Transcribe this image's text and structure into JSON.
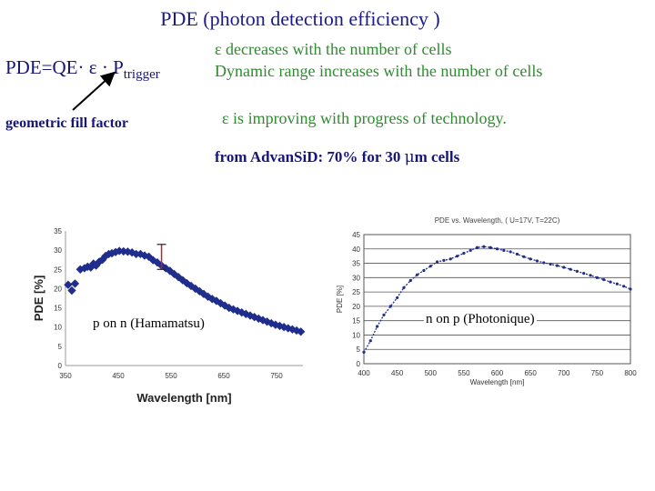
{
  "slide": {
    "title": "PDE (photon detection efficiency )",
    "formula_lhs": "PDE=QE· ε · P",
    "formula_sub": "trigger",
    "fill_factor_label": "geometric fill factor",
    "line1": "ε decreases with the number of cells",
    "line2": "Dynamic range increases with the number of cells",
    "line3": "ε is improving with progress of technology.",
    "advan_prefix": "from AdvanSiD: 70% for 30 ",
    "advan_mu": "μ",
    "advan_suffix": "m cells"
  },
  "colors": {
    "title": "#1a1a8c",
    "green_text": "#2e8b2e",
    "left_series": "#1f2d8c",
    "right_series": "#1f2d8c"
  },
  "chart_data": [
    {
      "type": "scatter",
      "title": "",
      "xlabel": "Wavelength [nm]",
      "ylabel": "PDE [%]",
      "xlim": [
        350,
        800
      ],
      "ylim": [
        0,
        35
      ],
      "x_ticks": [
        350,
        450,
        550,
        650,
        750
      ],
      "y_ticks": [
        0,
        5,
        10,
        15,
        20,
        25,
        30,
        35
      ],
      "annotation": "p on n (Hamamatsu)",
      "series": [
        {
          "x": [
            355,
            362,
            368,
            378,
            386,
            392,
            398,
            403,
            408,
            414,
            420,
            426,
            432,
            438,
            445,
            452,
            460,
            468,
            476,
            484,
            492,
            500,
            508,
            516,
            524,
            532,
            540,
            548,
            556,
            564,
            572,
            580,
            588,
            596,
            604,
            612,
            620,
            628,
            636,
            644,
            652,
            660,
            668,
            676,
            684,
            692,
            700,
            708,
            716,
            724,
            732,
            740,
            748,
            756,
            764,
            772,
            780,
            788,
            796
          ],
          "y": [
            21.0,
            19.5,
            21.3,
            25.0,
            25.3,
            25.7,
            25.5,
            26.5,
            26.0,
            27.0,
            27.5,
            28.5,
            29.0,
            29.2,
            29.5,
            29.8,
            29.7,
            29.6,
            29.4,
            29.0,
            29.0,
            28.6,
            28.3,
            27.4,
            26.8,
            26.0,
            25.3,
            24.6,
            23.8,
            23.0,
            22.2,
            21.4,
            20.7,
            20.0,
            19.3,
            18.6,
            17.9,
            17.3,
            16.8,
            16.2,
            15.6,
            15.0,
            14.6,
            14.2,
            13.8,
            13.4,
            13.0,
            12.6,
            12.2,
            11.8,
            11.4,
            11.0,
            10.6,
            10.3,
            10.0,
            9.7,
            9.4,
            9.1,
            8.8
          ]
        }
      ]
    },
    {
      "type": "line",
      "title": "PDE vs. Wavelength, ( U=17V, T=22C)",
      "xlabel": "Wavelength [nm]",
      "ylabel": "PDE [%]",
      "xlim": [
        400,
        800
      ],
      "ylim": [
        0,
        45
      ],
      "x_ticks": [
        400,
        450,
        500,
        550,
        600,
        650,
        700,
        750,
        800
      ],
      "y_ticks": [
        0,
        5,
        10,
        15,
        20,
        25,
        30,
        35,
        40,
        45
      ],
      "annotation": "n on p (Photonique)",
      "series": [
        {
          "x": [
            400,
            410,
            420,
            430,
            440,
            450,
            460,
            470,
            480,
            490,
            500,
            510,
            520,
            530,
            540,
            550,
            560,
            570,
            580,
            590,
            600,
            610,
            620,
            630,
            640,
            650,
            660,
            670,
            680,
            690,
            700,
            710,
            720,
            730,
            740,
            750,
            760,
            770,
            780,
            790,
            800
          ],
          "y": [
            4,
            8,
            13,
            17,
            20,
            23,
            26.5,
            29,
            31,
            32.5,
            34,
            35.5,
            36,
            36.5,
            37.5,
            38.5,
            39.5,
            40.5,
            40.8,
            40.5,
            40,
            39.5,
            39,
            38.2,
            37.3,
            36.5,
            35.8,
            35.2,
            34.7,
            34.2,
            33.6,
            32.9,
            32.2,
            31.5,
            30.8,
            30,
            29.3,
            28.5,
            27.8,
            27,
            26
          ]
        }
      ]
    }
  ]
}
